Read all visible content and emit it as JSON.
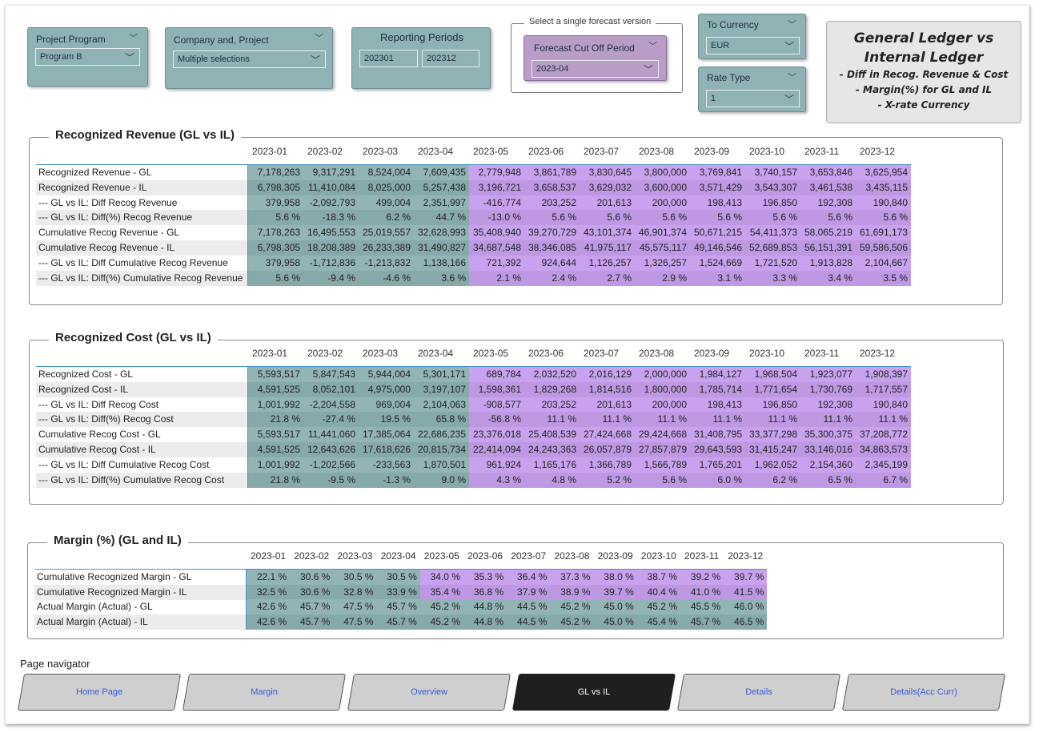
{
  "slicers": {
    "project_program": {
      "title": "Project Program",
      "value": "Program B"
    },
    "company_project": {
      "title": "Company and, Project",
      "value": "Multiple selections"
    },
    "reporting_periods": {
      "title": "Reporting Periods",
      "from": "202301",
      "to": "202312"
    },
    "forecast_group_label": "Select a single forecast version",
    "forecast_cutoff": {
      "title": "Forecast Cut Off Period",
      "value": "2023-04"
    },
    "to_currency": {
      "title": "To Currency",
      "value": "EUR"
    },
    "rate_type": {
      "title": "Rate Type",
      "value": "1"
    }
  },
  "title_card": {
    "heading": "General Ledger vs Internal Ledger",
    "lines": [
      "- Diff in Recog. Revenue & Cost",
      "- Margin(%) for GL and IL",
      "- X-rate Currency"
    ]
  },
  "colors": {
    "actual": "#92b4b5",
    "forecast": "#c9a2ef",
    "slicer": "#8fb2b5",
    "forecast_slicer": "#b89dc6",
    "nav_active": "#1f1f1f"
  },
  "periods": [
    "2023-01",
    "2023-02",
    "2023-03",
    "2023-04",
    "2023-05",
    "2023-06",
    "2023-07",
    "2023-08",
    "2023-09",
    "2023-10",
    "2023-11",
    "2023-12"
  ],
  "revenue": {
    "title": "Recognized Revenue (GL vs IL)",
    "rows": [
      {
        "label": "Recognized Revenue - GL",
        "values": [
          "7,178,263",
          "9,317,291",
          "8,524,004",
          "7,609,435",
          "2,779,948",
          "3,861,789",
          "3,830,645",
          "3,800,000",
          "3,769,841",
          "3,740,157",
          "3,653,846",
          "3,625,954"
        ]
      },
      {
        "label": "Recognized Revenue - IL",
        "values": [
          "6,798,305",
          "11,410,084",
          "8,025,000",
          "5,257,438",
          "3,196,721",
          "3,658,537",
          "3,629,032",
          "3,600,000",
          "3,571,429",
          "3,543,307",
          "3,461,538",
          "3,435,115"
        ]
      },
      {
        "label": "--- GL vs IL: Diff Recog Revenue",
        "values": [
          "379,958",
          "-2,092,793",
          "499,004",
          "2,351,997",
          "-416,774",
          "203,252",
          "201,613",
          "200,000",
          "198,413",
          "196,850",
          "192,308",
          "190,840"
        ]
      },
      {
        "label": "--- GL vs IL: Diff(%) Recog Revenue",
        "values": [
          "5.6 %",
          "-18.3 %",
          "6.2 %",
          "44.7 %",
          "-13.0 %",
          "5.6 %",
          "5.6 %",
          "5.6 %",
          "5.6 %",
          "5.6 %",
          "5.6 %",
          "5.6 %"
        ]
      },
      {
        "label": "Cumulative Recog Revenue - GL",
        "values": [
          "7,178,263",
          "16,495,553",
          "25,019,557",
          "32,628,993",
          "35,408,940",
          "39,270,729",
          "43,101,374",
          "46,901,374",
          "50,671,215",
          "54,411,373",
          "58,065,219",
          "61,691,173"
        ]
      },
      {
        "label": "Cumulative Recog Revenue - IL",
        "values": [
          "6,798,305",
          "18,208,389",
          "26,233,389",
          "31,490,827",
          "34,687,548",
          "38,346,085",
          "41,975,117",
          "45,575,117",
          "49,146,546",
          "52,689,853",
          "56,151,391",
          "59,586,506"
        ]
      },
      {
        "label": "--- GL vs IL: Diff Cumulative Recog Revenue",
        "values": [
          "379,958",
          "-1,712,836",
          "-1,213,832",
          "1,138,166",
          "721,392",
          "924,644",
          "1,126,257",
          "1,326,257",
          "1,524,669",
          "1,721,520",
          "1,913,828",
          "2,104,667"
        ]
      },
      {
        "label": "--- GL vs IL: Diff(%) Cumulative Recog Revenue",
        "values": [
          "5.6 %",
          "-9.4 %",
          "-4.6 %",
          "3.6 %",
          "2.1 %",
          "2.4 %",
          "2.7 %",
          "2.9 %",
          "3.1 %",
          "3.3 %",
          "3.4 %",
          "3.5 %"
        ]
      }
    ]
  },
  "cost": {
    "title": "Recognized Cost (GL vs IL)",
    "rows": [
      {
        "label": "Recognized Cost - GL",
        "values": [
          "5,593,517",
          "5,847,543",
          "5,944,004",
          "5,301,171",
          "689,784",
          "2,032,520",
          "2,016,129",
          "2,000,000",
          "1,984,127",
          "1,968,504",
          "1,923,077",
          "1,908,397"
        ]
      },
      {
        "label": "Recognized Cost - IL",
        "values": [
          "4,591,525",
          "8,052,101",
          "4,975,000",
          "3,197,107",
          "1,598,361",
          "1,829,268",
          "1,814,516",
          "1,800,000",
          "1,785,714",
          "1,771,654",
          "1,730,769",
          "1,717,557"
        ]
      },
      {
        "label": "--- GL vs IL: Diff Recog Cost",
        "values": [
          "1,001,992",
          "-2,204,558",
          "969,004",
          "2,104,063",
          "-908,577",
          "203,252",
          "201,613",
          "200,000",
          "198,413",
          "196,850",
          "192,308",
          "190,840"
        ]
      },
      {
        "label": "--- GL vs IL: Diff(%) Recog Cost",
        "values": [
          "21.8 %",
          "-27.4 %",
          "19.5 %",
          "65.8 %",
          "-56.8 %",
          "11.1 %",
          "11.1 %",
          "11.1 %",
          "11.1 %",
          "11.1 %",
          "11.1 %",
          "11.1 %"
        ]
      },
      {
        "label": "Cumulative Recog Cost - GL",
        "values": [
          "5,593,517",
          "11,441,060",
          "17,385,064",
          "22,686,235",
          "23,376,018",
          "25,408,539",
          "27,424,668",
          "29,424,668",
          "31,408,795",
          "33,377,298",
          "35,300,375",
          "37,208,772"
        ]
      },
      {
        "label": "Cumulative Recog Cost - IL",
        "values": [
          "4,591,525",
          "12,643,626",
          "17,618,626",
          "20,815,734",
          "22,414,094",
          "24,243,363",
          "26,057,879",
          "27,857,879",
          "29,643,593",
          "31,415,247",
          "33,146,016",
          "34,863,573"
        ]
      },
      {
        "label": "--- GL vs IL: Diff Cumulative Recog Cost",
        "values": [
          "1,001,992",
          "-1,202,566",
          "-233,563",
          "1,870,501",
          "961,924",
          "1,165,176",
          "1,366,789",
          "1,566,789",
          "1,765,201",
          "1,962,052",
          "2,154,360",
          "2,345,199"
        ]
      },
      {
        "label": "--- GL vs IL: Diff(%) Cumulative Recog Cost",
        "values": [
          "21.8 %",
          "-9.5 %",
          "-1.3 %",
          "9.0 %",
          "4.3 %",
          "4.8 %",
          "5.2 %",
          "5.6 %",
          "6.0 %",
          "6.2 %",
          "6.5 %",
          "6.7 %"
        ]
      }
    ]
  },
  "margin": {
    "title": "Margin (%) (GL and IL)",
    "rows": [
      {
        "label": "Cumulative Recognized Margin - GL",
        "values": [
          "22.1 %",
          "30.6 %",
          "30.5 %",
          "30.5 %",
          "34.0 %",
          "35.3 %",
          "36.4 %",
          "37.3 %",
          "38.0 %",
          "38.7 %",
          "39.2 %",
          "39.7 %"
        ],
        "kind": "cum"
      },
      {
        "label": "Cumulative Recognized Margin - IL",
        "values": [
          "32.5 %",
          "30.6 %",
          "32.8 %",
          "33.9 %",
          "35.4 %",
          "36.8 %",
          "37.9 %",
          "38.9 %",
          "39.7 %",
          "40.4 %",
          "41.0 %",
          "41.5 %"
        ],
        "kind": "cum"
      },
      {
        "label": "Actual Margin (Actual) - GL",
        "values": [
          "42.6 %",
          "45.7 %",
          "47.5 %",
          "45.7 %",
          "45.2 %",
          "44.8 %",
          "44.5 %",
          "45.2 %",
          "45.0 %",
          "45.2 %",
          "45.5 %",
          "46.0 %"
        ],
        "kind": "act"
      },
      {
        "label": "Actual Margin (Actual) - IL",
        "values": [
          "42.6 %",
          "45.7 %",
          "47.5 %",
          "45.7 %",
          "45.2 %",
          "44.8 %",
          "44.5 %",
          "45.2 %",
          "45.0 %",
          "45.4 %",
          "45.7 %",
          "46.5 %"
        ],
        "kind": "act"
      }
    ]
  },
  "navigator": {
    "label": "Page navigator",
    "buttons": [
      "Home Page",
      "Margin",
      "Overview",
      "GL vs IL",
      "Details",
      "Details(Acc Curr)"
    ],
    "active": "GL vs IL"
  }
}
